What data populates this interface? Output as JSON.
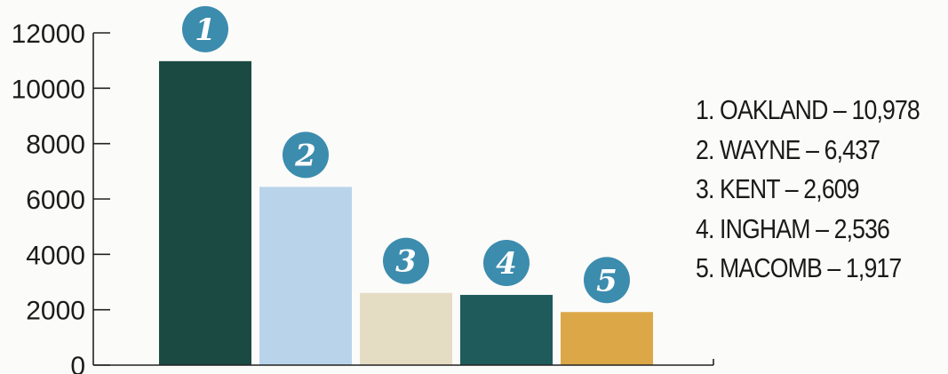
{
  "chart_data": {
    "type": "bar",
    "title": "",
    "xlabel": "",
    "ylabel": "",
    "categories": [
      "OAKLAND",
      "WAYNE",
      "KENT",
      "INGHAM",
      "MACOMB"
    ],
    "values": [
      10978,
      6437,
      2609,
      2536,
      1917
    ],
    "bar_colors": [
      "#1b4a43",
      "#b9d4ea",
      "#e5dcc4",
      "#1f5b5b",
      "#dca747"
    ],
    "bar_badges": [
      "1",
      "2",
      "3",
      "4",
      "5"
    ],
    "badge_color": "#3c8cae",
    "ylim": [
      0,
      12000
    ],
    "yticks": [
      0,
      2000,
      4000,
      6000,
      8000,
      10000,
      12000
    ],
    "ytick_labels": [
      "0",
      "2000",
      "4000",
      "6000",
      "8000",
      "10000",
      "12000"
    ],
    "grid": false,
    "legend_position": "right",
    "legend": [
      "1. OAKLAND – 10,978",
      "2. WAYNE – 6,437",
      "3. KENT – 2,609",
      "4. INGHAM – 2,536",
      "5. MACOMB – 1,917"
    ]
  }
}
